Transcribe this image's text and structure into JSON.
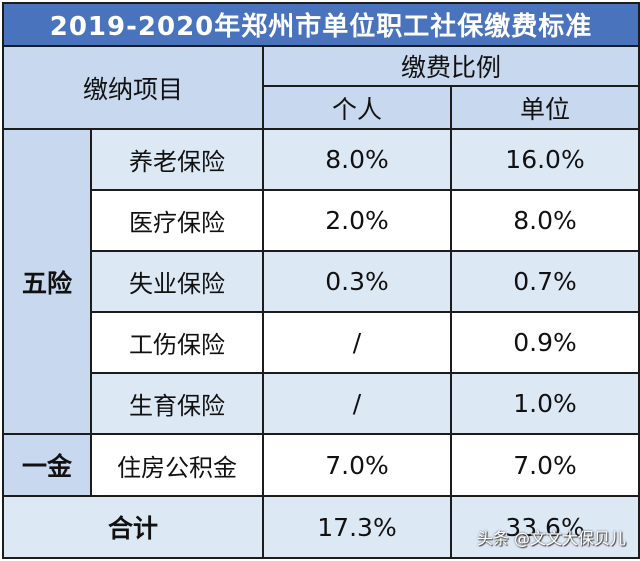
{
  "title": "2019-2020年郑州市单位职工社保缴费标准",
  "headers": {
    "item": "缴纳项目",
    "ratio": "缴费比例",
    "personal": "个人",
    "employer": "单位"
  },
  "groups": {
    "five_insurances": "五险",
    "one_fund": "一金"
  },
  "rows": [
    {
      "item": "养老保险",
      "personal": "8.0%",
      "employer": "16.0%"
    },
    {
      "item": "医疗保险",
      "personal": "2.0%",
      "employer": "8.0%"
    },
    {
      "item": "失业保险",
      "personal": "0.3%",
      "employer": "0.7%"
    },
    {
      "item": "工伤保险",
      "personal": "/",
      "employer": "0.9%"
    },
    {
      "item": "生育保险",
      "personal": "/",
      "employer": "1.0%"
    },
    {
      "item": "住房公积金",
      "personal": "7.0%",
      "employer": "7.0%"
    }
  ],
  "total": {
    "label": "合计",
    "personal": "17.3%",
    "employer": "33.6%"
  },
  "watermark": "头条 @文文大保贝儿",
  "colors": {
    "title_bg": "#4a73bd",
    "header_bg": "#c8d8ee",
    "alt_row_bg": "#dde8f5",
    "border": "#1c1c1c"
  }
}
